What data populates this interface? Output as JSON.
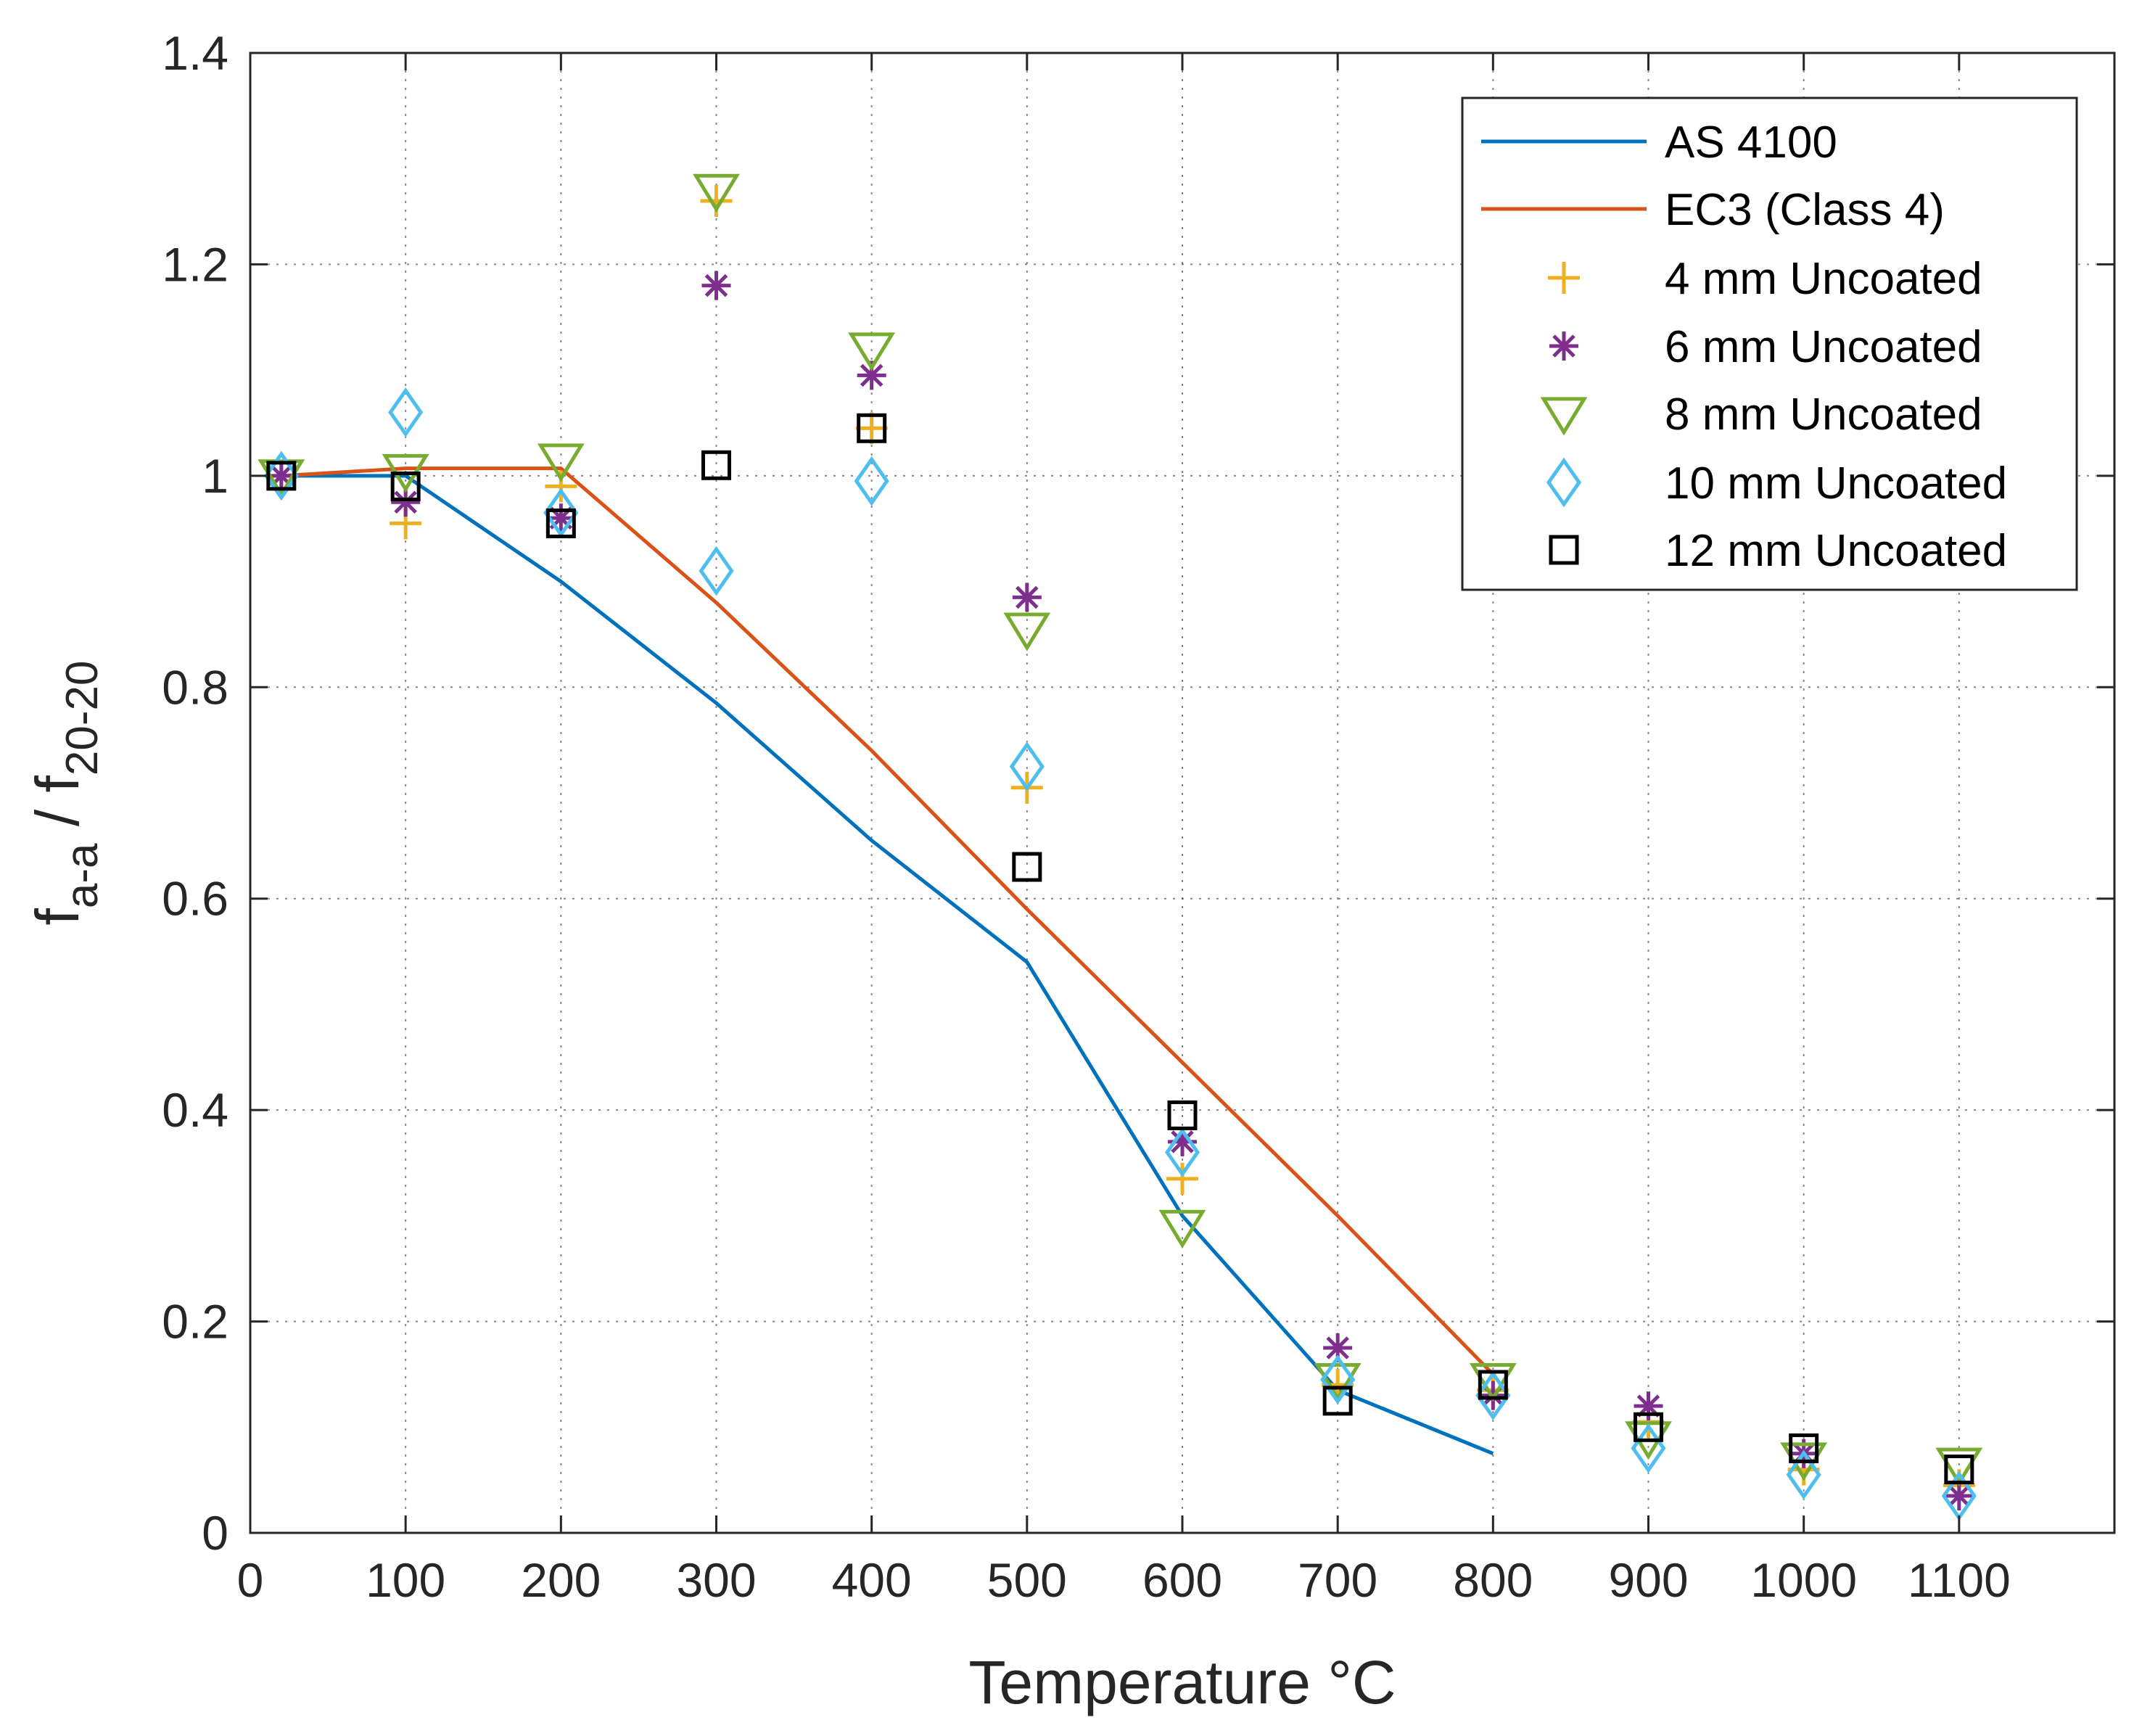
{
  "chart_data": {
    "type": "line",
    "xlabel": "Temperature °C",
    "ylabel_main": "f",
    "ylabel_sub1": "a-a",
    "ylabel_mid": " / f",
    "ylabel_sub2": "20-20",
    "xlim": [
      0,
      1200
    ],
    "ylim": [
      0,
      1.4
    ],
    "x_ticks": [
      0,
      100,
      200,
      300,
      400,
      500,
      600,
      700,
      800,
      900,
      1000,
      1100
    ],
    "y_ticks": [
      0,
      0.2,
      0.4,
      0.6,
      0.8,
      1,
      1.2,
      1.4
    ],
    "x_tick_labels": [
      "0",
      "100",
      "200",
      "300",
      "400",
      "500",
      "600",
      "700",
      "800",
      "900",
      "1000",
      "1100"
    ],
    "y_tick_labels": [
      "0",
      "0.2",
      "0.4",
      "0.6",
      "0.8",
      "1",
      "1.2",
      "1.4"
    ],
    "grid": true,
    "legend_position": "top-right",
    "lines": [
      {
        "name": "AS 4100",
        "color": "#0072BD",
        "x": [
          20,
          100,
          200,
          300,
          400,
          500,
          600,
          700,
          800
        ],
        "y": [
          1.0,
          1.0,
          0.9,
          0.785,
          0.655,
          0.54,
          0.3,
          0.135,
          0.075
        ]
      },
      {
        "name": "EC3 (Class 4)",
        "color": "#D95319",
        "x": [
          20,
          100,
          200,
          300,
          400,
          500,
          600,
          700,
          800
        ],
        "y": [
          1.0,
          1.007,
          1.007,
          0.88,
          0.74,
          0.59,
          0.445,
          0.3,
          0.15
        ]
      }
    ],
    "scatter": [
      {
        "name": "4 mm Uncoated",
        "marker": "plus",
        "color": "#EDB120",
        "x": [
          20,
          100,
          200,
          300,
          400,
          500,
          600,
          700,
          800,
          900,
          1000,
          1100
        ],
        "y": [
          1.0,
          0.955,
          0.99,
          1.26,
          1.045,
          0.705,
          0.335,
          0.14,
          0.135,
          0.105,
          0.06,
          0.045
        ]
      },
      {
        "name": "6 mm Uncoated",
        "marker": "asterisk",
        "color": "#7E2F8E",
        "x": [
          20,
          100,
          200,
          300,
          400,
          500,
          600,
          700,
          800,
          900,
          1000,
          1100
        ],
        "y": [
          1.0,
          0.975,
          0.96,
          1.18,
          1.095,
          0.885,
          0.37,
          0.175,
          0.13,
          0.12,
          0.075,
          0.035
        ]
      },
      {
        "name": "8 mm Uncoated",
        "marker": "triangle-down",
        "color": "#77AC30",
        "x": [
          20,
          100,
          200,
          300,
          400,
          500,
          600,
          700,
          800,
          900,
          1000,
          1100
        ],
        "y": [
          1.0,
          1.005,
          1.015,
          1.27,
          1.12,
          0.855,
          0.29,
          0.145,
          0.145,
          0.09,
          0.07,
          0.065
        ]
      },
      {
        "name": "10 mm Uncoated",
        "marker": "diamond",
        "color": "#4DBEEE",
        "x": [
          20,
          100,
          200,
          300,
          400,
          500,
          600,
          700,
          800,
          900,
          1000,
          1100
        ],
        "y": [
          1.0,
          1.06,
          0.965,
          0.91,
          0.995,
          0.725,
          0.36,
          0.145,
          0.13,
          0.08,
          0.055,
          0.035
        ]
      },
      {
        "name": "12 mm Uncoated",
        "marker": "square",
        "color": "#000000",
        "x": [
          20,
          100,
          200,
          300,
          400,
          500,
          600,
          700,
          800,
          900,
          1000,
          1100
        ],
        "y": [
          1.0,
          0.99,
          0.955,
          1.01,
          1.045,
          0.63,
          0.395,
          0.125,
          0.14,
          0.1,
          0.08,
          0.06
        ]
      }
    ]
  }
}
